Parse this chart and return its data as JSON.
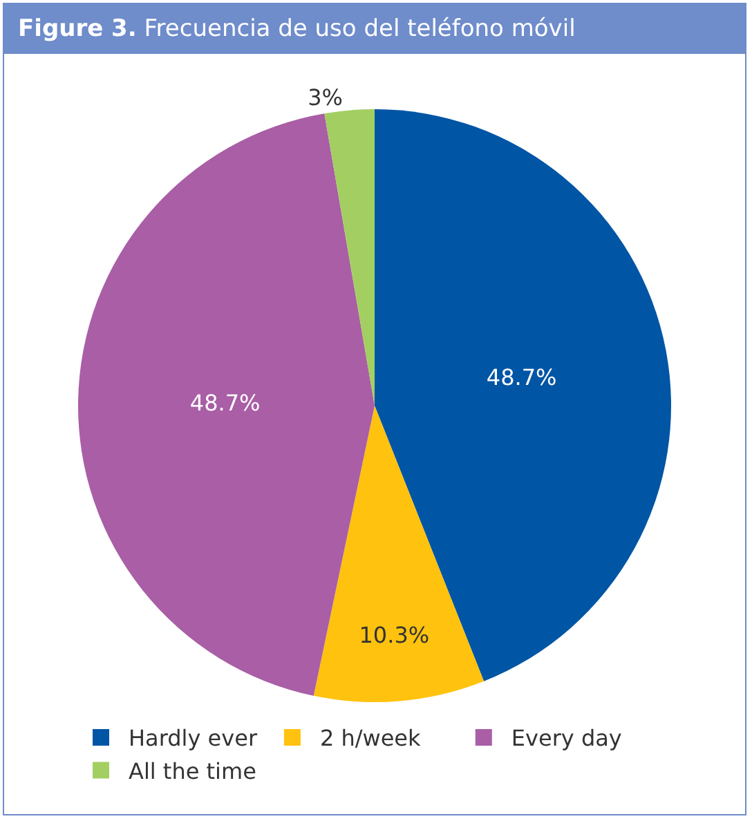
{
  "chart_data": {
    "type": "pie",
    "title": "Figure 3. Frecuencia de uso del teléfono móvil",
    "categories": [
      "Hardly ever",
      "2 h/week",
      "Every day",
      "All the time"
    ],
    "values": [
      48.7,
      10.3,
      48.7,
      3
    ],
    "colors": [
      "#0055a5",
      "#ffc20e",
      "#a95ea6",
      "#a3cf62"
    ],
    "value_labels": [
      "48.7%",
      "10.3%",
      "48.7%",
      "3%"
    ],
    "legend": "bottom"
  }
}
